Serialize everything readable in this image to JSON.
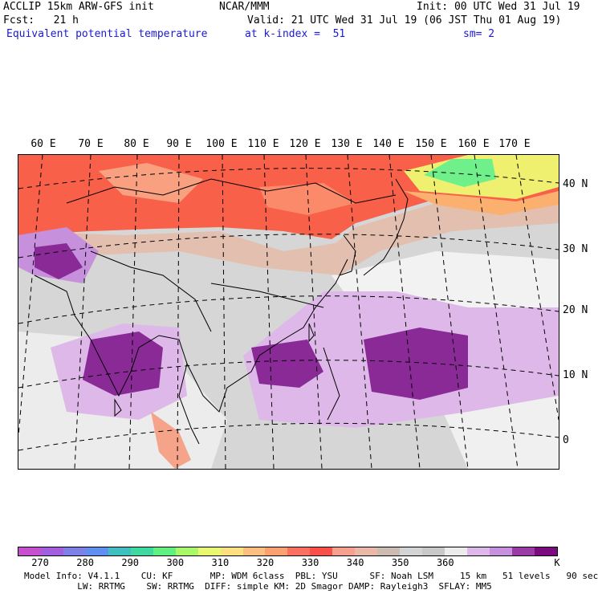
{
  "header": {
    "model": "ACCLIP 15km ARW-GFS init",
    "org": "NCAR/MMM",
    "init": "Init: 00 UTC Wed 31 Jul 19",
    "fcst": "Fcst:   21 h",
    "valid": "Valid: 21 UTC Wed 31 Jul 19 (06 JST Thu 01 Aug 19)",
    "field": "Equivalent potential temperature",
    "level": "at k-index =  51",
    "smooth": "sm= 2"
  },
  "map": {
    "lon_labels": [
      "60 E",
      "70 E",
      "80 E",
      "90 E",
      "100 E",
      "110 E",
      "120 E",
      "130 E",
      "140 E",
      "150 E",
      "160 E",
      "170 E"
    ],
    "lat_labels": [
      "40 N",
      "30 N",
      "20 N",
      "10 N",
      "0"
    ]
  },
  "colorbar": {
    "colors": [
      "#c64fcf",
      "#a35ee0",
      "#7f7fe8",
      "#5f8ff0",
      "#3fbfc0",
      "#3fd8a0",
      "#5ff07f",
      "#a8f86a",
      "#e8f870",
      "#fbe080",
      "#fbc080",
      "#fba070",
      "#fb7060",
      "#f85048",
      "#f8a090",
      "#e9b8a8",
      "#cbbbb0",
      "#d4d4d4",
      "#c8c8c8",
      "#ececec",
      "#ddb8e8",
      "#c690dd",
      "#9a3aa6",
      "#7a0a7e"
    ],
    "labels": [
      "270",
      "280",
      "290",
      "300",
      "310",
      "320",
      "330",
      "340",
      "350",
      "360"
    ],
    "unit": "K"
  },
  "footer": {
    "line1": "Model Info: V4.1.1    CU: KF       MP: WDM 6class  PBL: YSU      SF: Noah LSM     15 km   51 levels   90 sec",
    "line2": "          LW: RRTMG    SW: RRTMG  DIFF: simple KM: 2D Smagor DAMP: Rayleigh3  SFLAY: MM5"
  }
}
